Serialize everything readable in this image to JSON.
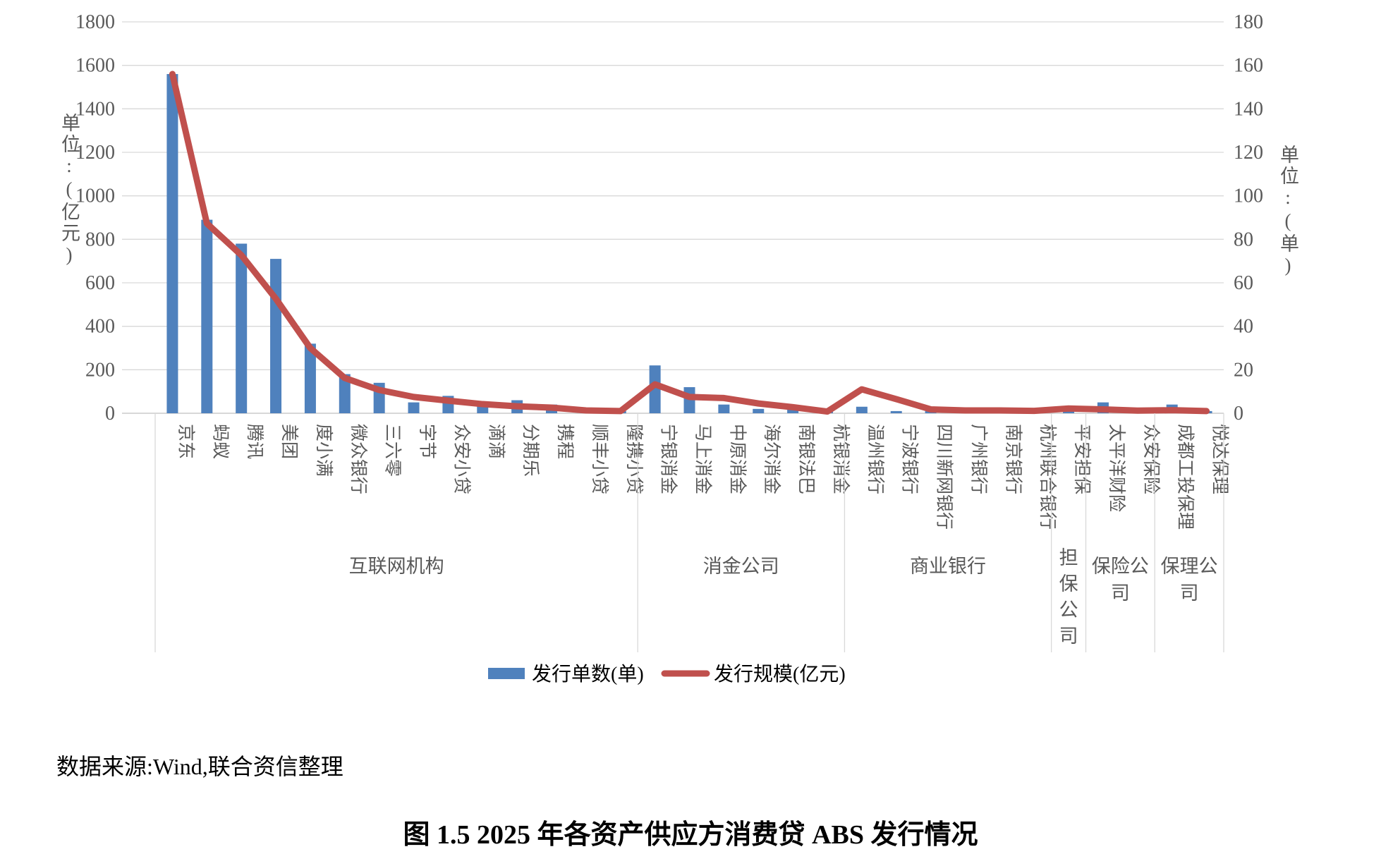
{
  "page": {
    "source_note": "数据来源:Wind,联合资信整理",
    "title": "图 1.5  2025 年各资产供应方消费贷 ABS 发行情况"
  },
  "colors": {
    "bar": "#4F81BD",
    "line": "#C0504D",
    "gridline": "#D9D9D9",
    "axis_line": "#BFBFBF",
    "tick_text": "#595959",
    "category_text": "#595959",
    "group_text": "#595959"
  },
  "chart_data": {
    "type": "bar",
    "subtype": "bar-line-combo",
    "grid": true,
    "legend_position": "bottom",
    "left_axis": {
      "title": "单位:(亿元)",
      "min": 0,
      "max": 1800,
      "step": 200,
      "ticks": [
        1800,
        1600,
        1400,
        1200,
        1000,
        800,
        600,
        400,
        200,
        0
      ]
    },
    "right_axis": {
      "title": "单位:(单)",
      "min": 0,
      "max": 180,
      "step": 20,
      "ticks": [
        180,
        160,
        140,
        120,
        100,
        80,
        60,
        40,
        20,
        0
      ]
    },
    "legend": [
      {
        "label": "发行单数(单)",
        "swatch": "bar"
      },
      {
        "label": "发行规模(亿元)",
        "swatch": "line"
      }
    ],
    "groups": [
      {
        "label": "互联网机构",
        "count": 14,
        "label_style": "horizontal"
      },
      {
        "label": "消金公司",
        "count": 6,
        "label_style": "horizontal"
      },
      {
        "label": "商业银行",
        "count": 6,
        "label_style": "horizontal"
      },
      {
        "label": "担保公司",
        "count": 1,
        "label_style": "stacked"
      },
      {
        "label": "保险公司",
        "count": 2,
        "label_style": "wrapped",
        "lines": [
          "保险公",
          "司"
        ]
      },
      {
        "label": "保理公司",
        "count": 2,
        "label_style": "wrapped",
        "lines": [
          "保理公",
          "司"
        ]
      }
    ],
    "categories": [
      "京东",
      "蚂蚁",
      "腾讯",
      "美团",
      "度小满",
      "微众银行",
      "三六零",
      "字节",
      "众安小贷",
      "滴滴",
      "分期乐",
      "携程",
      "顺丰小贷",
      "隆携小贷",
      "宁银消金",
      "马上消金",
      "中原消金",
      "海尔消金",
      "南银法巴",
      "杭银消金",
      "温州银行",
      "宁波银行",
      "四川新网银行",
      "广州银行",
      "南京银行",
      "杭州联合银行",
      "平安担保",
      "太平洋财险",
      "众安保险",
      "成都工投保理",
      "悦达保理"
    ],
    "series": [
      {
        "name": "发行单数(单)",
        "type": "bar",
        "axis": "right",
        "values": [
          156,
          89,
          78,
          71,
          32,
          18,
          14,
          5,
          8,
          5,
          6,
          4,
          1,
          1,
          22,
          12,
          4,
          2,
          2,
          1,
          3,
          1,
          1,
          1,
          1,
          1,
          2,
          5,
          1,
          4,
          1
        ]
      },
      {
        "name": "发行规模(亿元)",
        "type": "line",
        "axis": "left",
        "values": [
          1560,
          873,
          727,
          527,
          300,
          162,
          107,
          75,
          58,
          42,
          32,
          26,
          13,
          10,
          133,
          75,
          70,
          45,
          28,
          8,
          110,
          65,
          18,
          13,
          13,
          11,
          22,
          18,
          12,
          14,
          10
        ]
      }
    ]
  }
}
